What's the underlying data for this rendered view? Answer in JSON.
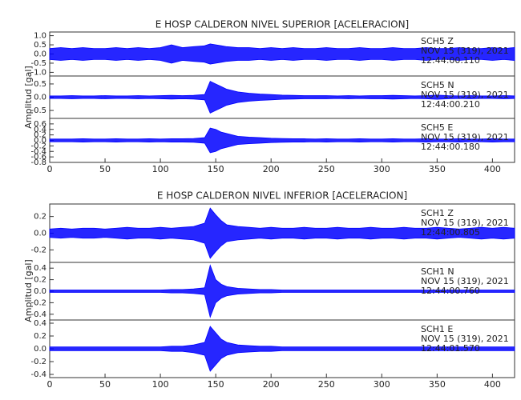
{
  "chart_data": [
    {
      "type": "seismogram",
      "title": "E HOSP CALDERON NIVEL SUPERIOR [ACELERACION]",
      "ylabel": "Amplitud [gal]",
      "color": "#0000ff",
      "xlim": [
        0,
        420
      ],
      "xticks": [
        0,
        50,
        100,
        150,
        200,
        250,
        300,
        350,
        400
      ],
      "x": [
        0,
        10,
        20,
        30,
        40,
        50,
        60,
        70,
        80,
        90,
        100,
        110,
        120,
        130,
        140,
        145,
        150,
        155,
        160,
        170,
        180,
        190,
        200,
        210,
        220,
        230,
        240,
        250,
        260,
        270,
        280,
        290,
        300,
        310,
        320,
        330,
        340,
        350,
        360,
        370,
        380,
        390,
        400,
        410,
        420
      ],
      "panels": [
        {
          "channel": "SCH5  Z",
          "date": "NOV 15 (319), 2021",
          "time": "12:44:00.110",
          "ylim": [
            -1.2,
            1.2
          ],
          "yticks": [
            {
              "value": -1,
              "label": "-1.0"
            },
            -0.5,
            {
              "value": 0,
              "label": "0.0"
            },
            0.5,
            {
              "value": 1,
              "label": "1.0"
            }
          ],
          "values": [
            0.3,
            0.35,
            0.3,
            0.35,
            0.3,
            0.3,
            0.35,
            0.3,
            0.35,
            0.3,
            0.35,
            0.5,
            0.35,
            0.4,
            0.45,
            0.55,
            0.5,
            0.45,
            0.4,
            0.35,
            0.35,
            0.3,
            0.35,
            0.3,
            0.35,
            0.3,
            0.3,
            0.35,
            0.3,
            0.3,
            0.35,
            0.3,
            0.3,
            0.35,
            0.3,
            0.3,
            0.35,
            0.3,
            0.3,
            0.35,
            0.3,
            0.3,
            0.35,
            0.3,
            0.35
          ]
        },
        {
          "channel": "SCH5  N",
          "date": "NOV 15 (319), 2021",
          "time": "12:44:00.210",
          "ylim": [
            -0.8,
            0.8
          ],
          "yticks": [
            -0.5,
            {
              "value": 0,
              "label": "0.0"
            },
            0.5
          ],
          "values": [
            0.05,
            0.05,
            0.06,
            0.05,
            0.05,
            0.06,
            0.05,
            0.05,
            0.06,
            0.05,
            0.06,
            0.07,
            0.06,
            0.07,
            0.1,
            0.6,
            0.5,
            0.4,
            0.3,
            0.2,
            0.15,
            0.12,
            0.1,
            0.08,
            0.07,
            0.06,
            0.06,
            0.06,
            0.05,
            0.06,
            0.05,
            0.06,
            0.06,
            0.07,
            0.06,
            0.05,
            0.06,
            0.08,
            0.06,
            0.05,
            0.06,
            0.05,
            0.05,
            0.06,
            0.05
          ]
        },
        {
          "channel": "SCH5  E",
          "date": "NOV 15 (319), 2021",
          "time": "12:44:00.180",
          "ylim": [
            -0.8,
            0.8
          ],
          "yticks": [
            -0.8,
            -0.6,
            -0.4,
            -0.2,
            {
              "value": 0,
              "label": "0.0"
            },
            0.2,
            0.4,
            0.6
          ],
          "values": [
            0.05,
            0.05,
            0.05,
            0.06,
            0.05,
            0.05,
            0.06,
            0.05,
            0.05,
            0.06,
            0.05,
            0.06,
            0.06,
            0.07,
            0.1,
            0.45,
            0.4,
            0.3,
            0.25,
            0.15,
            0.12,
            0.1,
            0.08,
            0.07,
            0.06,
            0.06,
            0.05,
            0.06,
            0.05,
            0.05,
            0.06,
            0.05,
            0.05,
            0.06,
            0.05,
            0.05,
            0.06,
            0.05,
            0.05,
            0.06,
            0.05,
            0.05,
            0.06,
            0.05,
            0.05
          ]
        }
      ]
    },
    {
      "type": "seismogram",
      "title": "E HOSP CALDERON NIVEL INFERIOR [ACELERACION]",
      "ylabel": "Amplitud [gal]",
      "color": "#0000ff",
      "xlim": [
        0,
        420
      ],
      "xticks": [
        0,
        50,
        100,
        150,
        200,
        250,
        300,
        350,
        400
      ],
      "x": [
        0,
        10,
        20,
        30,
        40,
        50,
        60,
        70,
        80,
        90,
        100,
        110,
        120,
        130,
        140,
        145,
        150,
        155,
        160,
        170,
        180,
        190,
        200,
        210,
        220,
        230,
        240,
        250,
        260,
        270,
        280,
        290,
        300,
        310,
        320,
        330,
        340,
        350,
        360,
        370,
        380,
        390,
        400,
        410,
        420
      ],
      "panels": [
        {
          "channel": "SCH1  Z",
          "date": "NOV 15 (319), 2021",
          "time": "12:44:00.805",
          "ylim": [
            -0.35,
            0.35
          ],
          "yticks": [
            -0.2,
            {
              "value": 0,
              "label": "0.0"
            },
            0.2
          ],
          "values": [
            0.05,
            0.06,
            0.05,
            0.06,
            0.06,
            0.05,
            0.06,
            0.07,
            0.06,
            0.06,
            0.07,
            0.06,
            0.07,
            0.08,
            0.12,
            0.3,
            0.22,
            0.15,
            0.1,
            0.08,
            0.07,
            0.06,
            0.07,
            0.06,
            0.06,
            0.07,
            0.06,
            0.06,
            0.07,
            0.06,
            0.06,
            0.07,
            0.06,
            0.06,
            0.07,
            0.06,
            0.06,
            0.07,
            0.06,
            0.05,
            0.06,
            0.07,
            0.06,
            0.07,
            0.06
          ]
        },
        {
          "channel": "SCH1  N",
          "date": "NOV 15 (319), 2021",
          "time": "12:44:00.760",
          "ylim": [
            -0.5,
            0.5
          ],
          "yticks": [
            -0.4,
            -0.2,
            {
              "value": 0,
              "label": "0.0"
            },
            0.2,
            0.4
          ],
          "values": [
            0.02,
            0.02,
            0.02,
            0.02,
            0.02,
            0.02,
            0.02,
            0.02,
            0.02,
            0.02,
            0.02,
            0.03,
            0.03,
            0.04,
            0.06,
            0.45,
            0.2,
            0.12,
            0.08,
            0.05,
            0.04,
            0.03,
            0.03,
            0.02,
            0.02,
            0.02,
            0.02,
            0.02,
            0.02,
            0.02,
            0.02,
            0.02,
            0.02,
            0.02,
            0.02,
            0.02,
            0.02,
            0.02,
            0.02,
            0.02,
            0.02,
            0.02,
            0.02,
            0.02,
            0.02
          ]
        },
        {
          "channel": "SCH1  E",
          "date": "NOV 15 (319), 2021",
          "time": "12:44:01.570",
          "ylim": [
            -0.45,
            0.45
          ],
          "yticks": [
            -0.4,
            -0.2,
            {
              "value": 0,
              "label": "0.0"
            },
            0.2,
            0.4
          ],
          "values": [
            0.03,
            0.03,
            0.03,
            0.03,
            0.03,
            0.03,
            0.03,
            0.03,
            0.03,
            0.03,
            0.03,
            0.04,
            0.04,
            0.06,
            0.1,
            0.35,
            0.25,
            0.15,
            0.1,
            0.06,
            0.05,
            0.04,
            0.04,
            0.03,
            0.03,
            0.03,
            0.03,
            0.03,
            0.03,
            0.03,
            0.03,
            0.03,
            0.03,
            0.03,
            0.03,
            0.03,
            0.03,
            0.03,
            0.03,
            0.03,
            0.03,
            0.03,
            0.03,
            0.03,
            0.03
          ]
        }
      ]
    }
  ]
}
